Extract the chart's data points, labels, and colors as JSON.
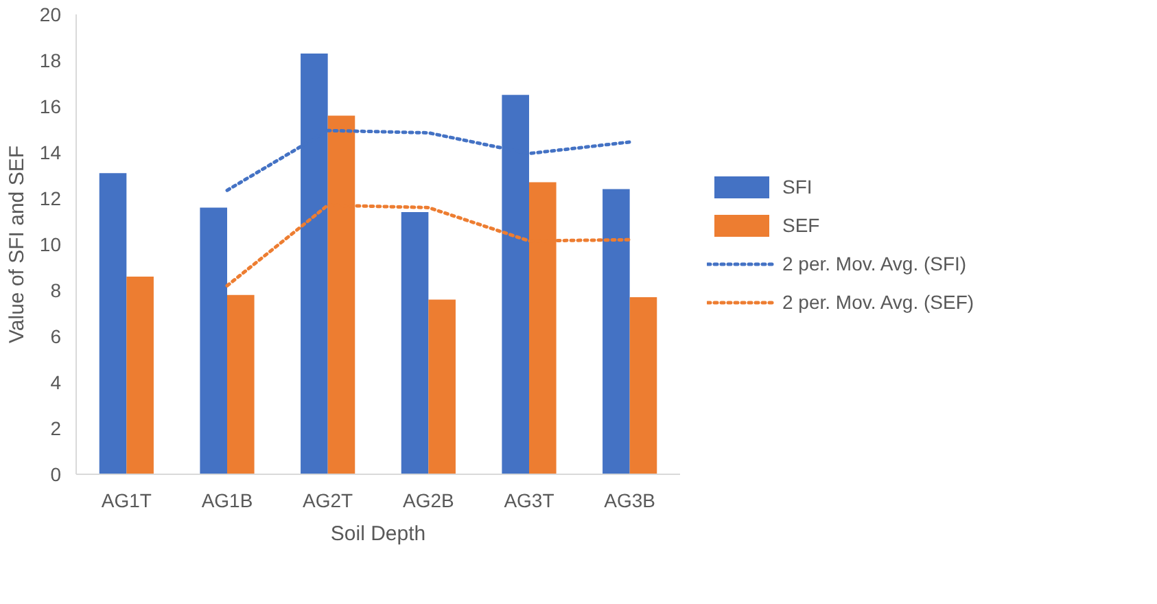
{
  "chart_data": {
    "type": "bar",
    "xlabel": "Soil Depth",
    "ylabel": "Value of SFI and SEF",
    "categories": [
      "AG1T",
      "AG1B",
      "AG2T",
      "AG2B",
      "AG3T",
      "AG3B"
    ],
    "series": [
      {
        "name": "SFI",
        "color": "#4472c4",
        "values": [
          13.1,
          11.6,
          18.3,
          11.4,
          16.5,
          12.4
        ]
      },
      {
        "name": "SEF",
        "color": "#ed7d31",
        "values": [
          8.6,
          7.8,
          15.6,
          7.6,
          12.7,
          7.7
        ]
      },
      {
        "name": "2 per. Mov. Avg. (SFI)",
        "type": "line",
        "line_style": "dotted",
        "color": "#4472c4",
        "values": [
          null,
          12.35,
          14.95,
          14.85,
          13.95,
          14.45
        ]
      },
      {
        "name": "2 per. Mov. Avg. (SEF)",
        "type": "line",
        "line_style": "dotted",
        "color": "#ed7d31",
        "values": [
          null,
          8.2,
          11.7,
          11.6,
          10.15,
          10.2
        ]
      }
    ],
    "ylim": [
      0,
      20
    ],
    "yticks": [
      0,
      2,
      4,
      6,
      8,
      10,
      12,
      14,
      16,
      18,
      20
    ],
    "grid": false,
    "legend": "right"
  }
}
